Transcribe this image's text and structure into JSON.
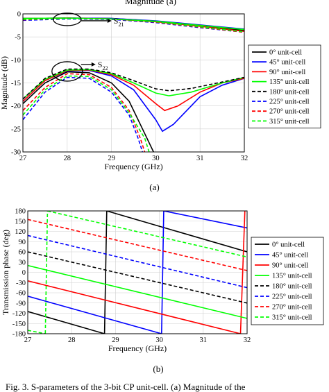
{
  "top_text": "Magnitude of the S-parameters ... (a)",
  "caption_bottom": "Fig. 3. S-parameters of the 3-bit CP unit-cell. (a) Magnitude of the",
  "series_styles": [
    {
      "name": "0° unit-cell",
      "color": "#000000",
      "dash": "solid"
    },
    {
      "name": "45° unit-cell",
      "color": "#0000ff",
      "dash": "solid"
    },
    {
      "name": "90° unit-cell",
      "color": "#ff0000",
      "dash": "solid"
    },
    {
      "name": "135° unit-cell",
      "color": "#00ff00",
      "dash": "solid"
    },
    {
      "name": "180° unit-cell",
      "color": "#000000",
      "dash": "dashed"
    },
    {
      "name": "225° unit-cell",
      "color": "#0000ff",
      "dash": "dashed"
    },
    {
      "name": "270° unit-cell",
      "color": "#ff0000",
      "dash": "dashed"
    },
    {
      "name": "315° unit-cell",
      "color": "#00ff00",
      "dash": "dashed"
    }
  ],
  "chart_data": [
    {
      "type": "line",
      "caption": "(a)",
      "xlabel": "Frequency (GHz)",
      "ylabel": "Magnitude (dB)",
      "xlim": [
        27,
        32
      ],
      "ylim": [
        -30,
        0
      ],
      "xticks": [
        "27",
        "28",
        "29",
        "30",
        "31",
        "32"
      ],
      "yticks": [
        "0",
        "-5",
        "-10",
        "-15",
        "-20",
        "-25",
        "-30"
      ],
      "grid": true,
      "legend_position": "right",
      "annotations": [
        {
          "label": "S",
          "sub": "21",
          "x": 28.0,
          "y": -1.2
        },
        {
          "label": "S",
          "sub": "22",
          "x": 28.0,
          "y": -12.5
        }
      ],
      "series": [
        {
          "name": "0° unit-cell",
          "s21": [
            [
              27,
              -1.0
            ],
            [
              28,
              -0.9
            ],
            [
              29,
              -1.0
            ],
            [
              30,
              -1.6
            ],
            [
              31,
              -2.6
            ],
            [
              32,
              -3.6
            ]
          ],
          "s22": [
            [
              27,
              -19.5
            ],
            [
              27.5,
              -15
            ],
            [
              28,
              -12.6
            ],
            [
              28.5,
              -12.8
            ],
            [
              29,
              -15
            ],
            [
              29.4,
              -19
            ],
            [
              29.7,
              -25
            ],
            [
              29.95,
              -30
            ]
          ]
        },
        {
          "name": "45° unit-cell",
          "s21": [
            [
              27,
              -1.0
            ],
            [
              28,
              -0.9
            ],
            [
              29,
              -1.0
            ],
            [
              30,
              -1.5
            ],
            [
              31,
              -2.4
            ],
            [
              32,
              -3.3
            ]
          ],
          "s22": [
            [
              27,
              -19
            ],
            [
              27.5,
              -14.5
            ],
            [
              28,
              -12.4
            ],
            [
              28.5,
              -12.3
            ],
            [
              29,
              -13.5
            ],
            [
              29.5,
              -16.5
            ],
            [
              30,
              -23
            ],
            [
              30.15,
              -25.5
            ],
            [
              30.4,
              -24
            ],
            [
              31,
              -18
            ],
            [
              31.5,
              -15.5
            ],
            [
              32,
              -14
            ]
          ]
        },
        {
          "name": "90° unit-cell",
          "s21": [
            [
              27,
              -1.0
            ],
            [
              28,
              -0.9
            ],
            [
              29,
              -1.1
            ],
            [
              30,
              -1.7
            ],
            [
              31,
              -2.7
            ],
            [
              32,
              -3.8
            ]
          ],
          "s22": [
            [
              27,
              -19
            ],
            [
              27.5,
              -14.5
            ],
            [
              28,
              -12.3
            ],
            [
              28.5,
              -12.2
            ],
            [
              29,
              -13.2
            ],
            [
              29.5,
              -15.5
            ],
            [
              30,
              -19.5
            ],
            [
              30.2,
              -21
            ],
            [
              30.5,
              -20
            ],
            [
              31,
              -17
            ],
            [
              31.5,
              -15
            ],
            [
              32,
              -14
            ]
          ]
        },
        {
          "name": "135° unit-cell",
          "s21": [
            [
              27,
              -1.0
            ],
            [
              28,
              -0.9
            ],
            [
              29,
              -1.1
            ],
            [
              30,
              -1.6
            ],
            [
              31,
              -2.5
            ],
            [
              32,
              -3.4
            ]
          ],
          "s22": [
            [
              27,
              -18.5
            ],
            [
              27.5,
              -14.2
            ],
            [
              28,
              -12.2
            ],
            [
              28.5,
              -12.1
            ],
            [
              29,
              -13
            ],
            [
              29.5,
              -15
            ],
            [
              30,
              -17.2
            ],
            [
              30.3,
              -17.8
            ],
            [
              30.8,
              -17
            ],
            [
              31.5,
              -15
            ],
            [
              32,
              -13.8
            ]
          ]
        },
        {
          "name": "180° unit-cell",
          "s21": [
            [
              27,
              -1.2
            ],
            [
              28,
              -1.0
            ],
            [
              29,
              -1.1
            ],
            [
              30,
              -1.7
            ],
            [
              31,
              -2.8
            ],
            [
              32,
              -3.9
            ]
          ],
          "s22": [
            [
              27,
              -18.5
            ],
            [
              27.5,
              -14
            ],
            [
              28,
              -12
            ],
            [
              28.5,
              -12
            ],
            [
              29,
              -12.8
            ],
            [
              29.5,
              -14.5
            ],
            [
              30,
              -16.3
            ],
            [
              30.3,
              -16.7
            ],
            [
              30.8,
              -16.2
            ],
            [
              31.5,
              -14.8
            ],
            [
              32,
              -13.8
            ]
          ]
        },
        {
          "name": "225° unit-cell",
          "s21": [
            [
              27,
              -1.4
            ],
            [
              28,
              -1.1
            ],
            [
              29,
              -1.2
            ],
            [
              30,
              -1.9
            ],
            [
              31,
              -3.0
            ],
            [
              32,
              -4.0
            ]
          ],
          "s22": [
            [
              27,
              -23
            ],
            [
              27.5,
              -17
            ],
            [
              28,
              -13.8
            ],
            [
              28.5,
              -14
            ],
            [
              29,
              -17
            ],
            [
              29.4,
              -22
            ],
            [
              29.6,
              -27
            ],
            [
              29.7,
              -30
            ]
          ]
        },
        {
          "name": "270° unit-cell",
          "s21": [
            [
              27,
              -1.3
            ],
            [
              28,
              -1.0
            ],
            [
              29,
              -1.1
            ],
            [
              30,
              -1.8
            ],
            [
              31,
              -2.9
            ],
            [
              32,
              -4.0
            ]
          ],
          "s22": [
            [
              27,
              -21
            ],
            [
              27.5,
              -16
            ],
            [
              28,
              -13
            ],
            [
              28.5,
              -13.2
            ],
            [
              29,
              -16
            ],
            [
              29.4,
              -21
            ],
            [
              29.65,
              -27
            ],
            [
              29.75,
              -30
            ]
          ]
        },
        {
          "name": "315° unit-cell",
          "s21": [
            [
              27,
              -1.2
            ],
            [
              28,
              -1.0
            ],
            [
              29,
              -1.1
            ],
            [
              30,
              -1.7
            ],
            [
              31,
              -2.8
            ],
            [
              32,
              -3.9
            ]
          ],
          "s22": [
            [
              27,
              -22
            ],
            [
              27.5,
              -16.5
            ],
            [
              28,
              -13.5
            ],
            [
              28.5,
              -13.6
            ],
            [
              29,
              -16.5
            ],
            [
              29.4,
              -21.5
            ],
            [
              29.75,
              -27
            ],
            [
              29.85,
              -30
            ]
          ]
        }
      ]
    },
    {
      "type": "line",
      "caption": "(b)",
      "xlabel": "Frequency (GHz)",
      "ylabel": "Transmission phase (deg)",
      "xlim": [
        27,
        32
      ],
      "ylim": [
        -180,
        180
      ],
      "xticks": [
        "27",
        "28",
        "29",
        "30",
        "31",
        "32"
      ],
      "yticks": [
        "180",
        "150",
        "120",
        "90",
        "60",
        "30",
        "0",
        "-30",
        "-60",
        "-90",
        "-120",
        "-150",
        "-180"
      ],
      "grid": true,
      "legend_position": "right",
      "series": [
        {
          "name": "0° unit-cell",
          "segments": [
            [
              [
                27,
                -115
              ],
              [
                28.75,
                -180
              ]
            ],
            [
              [
                28.75,
                -180
              ],
              [
                28.8,
                180
              ]
            ],
            [
              [
                28.8,
                180
              ],
              [
                32,
                60
              ]
            ]
          ]
        },
        {
          "name": "45° unit-cell",
          "segments": [
            [
              [
                27,
                -70
              ],
              [
                30.05,
                -180
              ]
            ],
            [
              [
                30.05,
                -180
              ],
              [
                30.1,
                180
              ]
            ],
            [
              [
                30.1,
                180
              ],
              [
                32,
                130
              ]
            ]
          ]
        },
        {
          "name": "90° unit-cell",
          "segments": [
            [
              [
                27,
                -25
              ],
              [
                31.85,
                -180
              ]
            ],
            [
              [
                31.85,
                -180
              ],
              [
                31.95,
                180
              ]
            ]
          ]
        },
        {
          "name": "135° unit-cell",
          "segments": [
            [
              [
                27,
                20
              ],
              [
                32,
                -135
              ]
            ]
          ]
        },
        {
          "name": "180° unit-cell",
          "segments": [
            [
              [
                27,
                60
              ],
              [
                32,
                -90
              ]
            ]
          ]
        },
        {
          "name": "225° unit-cell",
          "segments": [
            [
              [
                27,
                108
              ],
              [
                32,
                -45
              ]
            ]
          ]
        },
        {
          "name": "270° unit-cell",
          "segments": [
            [
              [
                27,
                155
              ],
              [
                32,
                5
              ]
            ]
          ]
        },
        {
          "name": "315° unit-cell",
          "segments": [
            [
              [
                27,
                -170
              ],
              [
                27.4,
                -180
              ]
            ],
            [
              [
                27.4,
                -180
              ],
              [
                27.45,
                180
              ]
            ],
            [
              [
                27.45,
                180
              ],
              [
                32,
                45
              ]
            ]
          ]
        }
      ]
    }
  ]
}
